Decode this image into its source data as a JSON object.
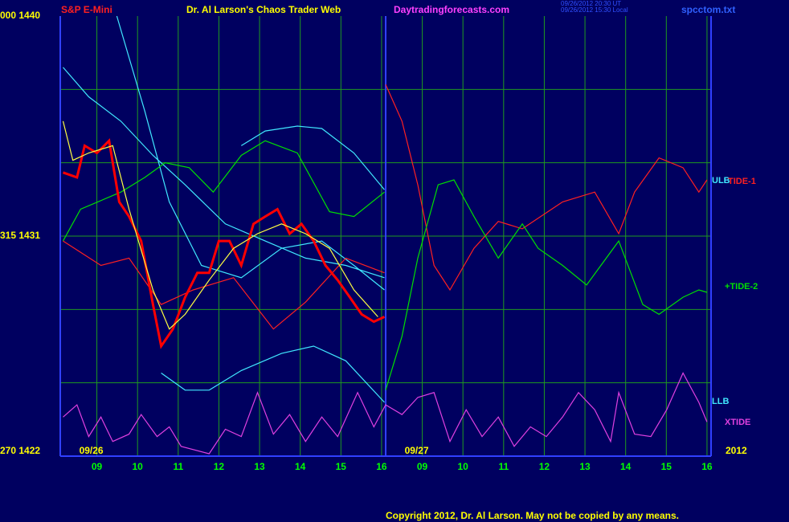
{
  "chart_data": {
    "type": "line",
    "title": "Dr. Al Larson's Chaos Trader Web",
    "symbol": "S&P E-Mini",
    "site": "Daytradingforecasts.com",
    "timestamps": [
      "09/26/2012 20:30 UT",
      "09/26/2012 15:30 Local"
    ],
    "file": "spcctom.txt",
    "copyright": "Copyright 2012, Dr. Al Larson. May not be copied by any means.",
    "dates": [
      {
        "value": 1,
        "label": "09/26"
      },
      {
        "value": 9,
        "label": "09/27"
      }
    ],
    "year": "2012",
    "ylim": [
      1422,
      1440
    ],
    "yticks": [
      {
        "value": 1440,
        "label": "000  1440"
      },
      {
        "value": 1431,
        "label": "315  1431"
      },
      {
        "value": 1422,
        "label": "270  1422"
      }
    ],
    "ygrid": [
      1437,
      1434,
      1431,
      1428,
      1425
    ],
    "xlim": [
      0.1,
      16.1
    ],
    "xticks": [
      {
        "value": 1,
        "label": "09"
      },
      {
        "value": 2,
        "label": "10"
      },
      {
        "value": 3,
        "label": "11"
      },
      {
        "value": 4,
        "label": "12"
      },
      {
        "value": 5,
        "label": "13"
      },
      {
        "value": 6,
        "label": "14"
      },
      {
        "value": 7,
        "label": "15"
      },
      {
        "value": 8,
        "label": "16"
      },
      {
        "value": 9,
        "label": "09"
      },
      {
        "value": 10,
        "label": "10"
      },
      {
        "value": 11,
        "label": "11"
      },
      {
        "value": 12,
        "label": "12"
      },
      {
        "value": 13,
        "label": "13"
      },
      {
        "value": 14,
        "label": "14"
      },
      {
        "value": 15,
        "label": "15"
      },
      {
        "value": 16,
        "label": "16"
      }
    ],
    "grid": true,
    "series": [
      {
        "color": "#40e8ff",
        "x": [
          1.49,
          2.18,
          2.78,
          3.57,
          4.55,
          5.54,
          6.53,
          7.32,
          8.07
        ],
        "values": [
          1440,
          1436.1,
          1432.4,
          1429.8,
          1429.3,
          1430.5,
          1430.8,
          1429.8,
          1428.8
        ]
      },
      {
        "color": "#40e8ff",
        "x": [
          0.17,
          0.8,
          1.59,
          2.38,
          3.17,
          4.16,
          5.14,
          6.13,
          7.12,
          8.07
        ],
        "values": [
          1437.9,
          1436.7,
          1435.7,
          1434.3,
          1433.1,
          1431.5,
          1430.8,
          1430.1,
          1429.8,
          1429.3
        ]
      },
      {
        "name": "ULB",
        "color": "#40e8ff",
        "x": [
          4.55,
          5.14,
          5.93,
          6.53,
          7.32,
          8.07
        ],
        "values": [
          1434.7,
          1435.3,
          1435.5,
          1435.4,
          1434.4,
          1432.9
        ]
      },
      {
        "name": "LLB",
        "color": "#40e8ff",
        "x": [
          2.58,
          3.17,
          3.76,
          4.55,
          5.54,
          6.33,
          7.12,
          8.07
        ],
        "values": [
          1425.4,
          1424.7,
          1424.7,
          1425.5,
          1426.2,
          1426.5,
          1425.9,
          1424.2
        ]
      },
      {
        "color": "#00e000",
        "x": [
          0.17,
          0.6,
          1.59,
          2.18,
          2.68,
          3.27,
          3.86,
          4.55,
          5.14,
          5.93,
          6.72,
          7.32,
          8.07
        ],
        "values": [
          1430.8,
          1432.1,
          1432.8,
          1433.4,
          1434.0,
          1433.8,
          1432.8,
          1434.3,
          1434.9,
          1434.4,
          1432.0,
          1431.8,
          1432.8
        ]
      },
      {
        "color": "#ff2020",
        "x": [
          0.17,
          1.1,
          1.79,
          2.58,
          3.37,
          4.36,
          5.34,
          6.13,
          7.12,
          8.07
        ],
        "values": [
          1430.8,
          1429.8,
          1430.1,
          1428.2,
          1428.8,
          1429.3,
          1427.2,
          1428.3,
          1430.1,
          1429.5
        ]
      },
      {
        "color": "#ff0000",
        "x": [
          0.17,
          0.51,
          0.7,
          1.0,
          1.3,
          1.55,
          1.79,
          2.09,
          2.38,
          2.58,
          2.87,
          3.17,
          3.47,
          3.76,
          4.0,
          4.26,
          4.55,
          4.85,
          5.14,
          5.44,
          5.74,
          6.03,
          6.33,
          6.62,
          6.92,
          7.22,
          7.51,
          7.81,
          8.07
        ],
        "values": [
          1433.6,
          1433.4,
          1434.7,
          1434.4,
          1434.9,
          1432.4,
          1431.8,
          1430.8,
          1428.2,
          1426.5,
          1427.2,
          1428.5,
          1429.5,
          1429.5,
          1430.8,
          1430.8,
          1429.8,
          1431.5,
          1431.8,
          1432.1,
          1431.1,
          1431.5,
          1430.8,
          1429.8,
          1429.2,
          1428.5,
          1427.8,
          1427.5,
          1427.7
        ]
      },
      {
        "color": "#ffff40",
        "x": [
          0.17,
          0.41,
          0.8,
          1.39,
          1.79,
          2.38,
          2.78,
          3.17,
          3.76,
          4.36,
          4.95,
          5.54,
          6.13,
          6.72,
          7.32,
          7.91
        ],
        "values": [
          1435.7,
          1434.1,
          1434.4,
          1434.7,
          1432.1,
          1428.8,
          1427.2,
          1427.8,
          1429.2,
          1430.5,
          1431.1,
          1431.5,
          1431.1,
          1430.5,
          1428.8,
          1427.7
        ]
      },
      {
        "name": "TIDE-1",
        "color": "#ff2020",
        "x": [
          8.1,
          8.5,
          8.89,
          9.29,
          9.68,
          10.27,
          10.87,
          11.46,
          12.45,
          13.24,
          13.83,
          14.22,
          14.82,
          15.41,
          15.8,
          16.0
        ],
        "values": [
          1437.2,
          1435.7,
          1433.1,
          1429.8,
          1428.8,
          1430.5,
          1431.6,
          1431.3,
          1432.4,
          1432.8,
          1431.1,
          1432.8,
          1434.2,
          1433.8,
          1432.8,
          1433.3
        ]
      },
      {
        "name": "+TIDE-2",
        "color": "#00e000",
        "x": [
          8.1,
          8.5,
          8.89,
          9.39,
          9.78,
          10.27,
          10.87,
          11.46,
          11.85,
          12.45,
          13.04,
          13.83,
          14.42,
          14.82,
          15.41,
          15.8,
          16.0
        ],
        "values": [
          1424.7,
          1426.9,
          1430.1,
          1433.1,
          1433.3,
          1431.8,
          1430.1,
          1431.5,
          1430.5,
          1429.8,
          1429.0,
          1430.8,
          1428.2,
          1427.8,
          1428.5,
          1428.8,
          1428.7
        ]
      },
      {
        "name": "XTIDE",
        "color": "#e040e0",
        "x": [
          0.17,
          0.51,
          0.8,
          1.1,
          1.39,
          1.79,
          2.09,
          2.48,
          2.78,
          3.07,
          3.76,
          4.16,
          4.55,
          4.95,
          5.34,
          5.74,
          6.13,
          6.53,
          6.92,
          7.41,
          7.81,
          8.1,
          8.5,
          8.89,
          9.29,
          9.68,
          10.08,
          10.47,
          10.87,
          11.26,
          11.66,
          12.05,
          12.45,
          12.84,
          13.24,
          13.63,
          13.83,
          14.22,
          14.62,
          15.01,
          15.41,
          15.8,
          16.0
        ],
        "values": [
          1423.6,
          1424.1,
          1422.8,
          1423.6,
          1422.6,
          1422.9,
          1423.7,
          1422.8,
          1423.2,
          1422.4,
          1422.1,
          1423.1,
          1422.8,
          1424.6,
          1422.9,
          1423.7,
          1422.6,
          1423.6,
          1422.8,
          1424.6,
          1423.2,
          1424.1,
          1423.7,
          1424.4,
          1424.6,
          1422.6,
          1423.9,
          1422.8,
          1423.6,
          1422.4,
          1423.2,
          1422.8,
          1423.6,
          1424.6,
          1423.9,
          1422.6,
          1424.6,
          1422.9,
          1422.8,
          1423.9,
          1425.4,
          1424.2,
          1423.4
        ]
      }
    ]
  }
}
